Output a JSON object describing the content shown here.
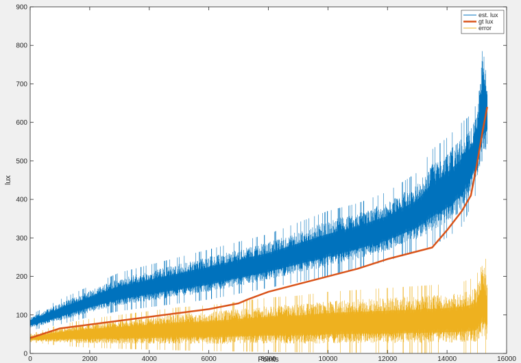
{
  "chart_data": {
    "type": "line",
    "title": "",
    "xlabel": "Points",
    "ylabel": "lux",
    "xlim": [
      0,
      16000
    ],
    "ylim": [
      0,
      900
    ],
    "xticks": [
      0,
      2000,
      4000,
      6000,
      8000,
      10000,
      12000,
      14000,
      16000
    ],
    "yticks": [
      0,
      100,
      200,
      300,
      400,
      500,
      600,
      700,
      800,
      900
    ],
    "grid": false,
    "legend_position": "top-right",
    "series": [
      {
        "name": "est. lux",
        "color": "#0072BD",
        "style": "noisy band",
        "x": [
          0,
          1000,
          2000,
          3000,
          4000,
          5000,
          6000,
          7000,
          8000,
          9000,
          10000,
          11000,
          12000,
          13000,
          13500,
          14000,
          14500,
          14800,
          15000,
          15200,
          15350
        ],
        "center": [
          75,
          105,
          130,
          145,
          160,
          175,
          190,
          210,
          230,
          250,
          270,
          295,
          325,
          365,
          390,
          420,
          470,
          520,
          570,
          660,
          620
        ],
        "upper": [
          100,
          140,
          175,
          210,
          230,
          250,
          270,
          290,
          310,
          340,
          370,
          390,
          420,
          470,
          530,
          560,
          600,
          620,
          650,
          870,
          760
        ],
        "lower": [
          60,
          75,
          95,
          110,
          120,
          130,
          140,
          155,
          170,
          185,
          200,
          220,
          240,
          265,
          280,
          300,
          330,
          380,
          420,
          440,
          500
        ]
      },
      {
        "name": "gt lux",
        "color": "#D95319",
        "style": "line",
        "x": [
          0,
          1000,
          2000,
          3000,
          4000,
          5000,
          6000,
          7000,
          7300,
          8000,
          9000,
          10000,
          11000,
          12000,
          13000,
          13500,
          14000,
          14500,
          14800,
          15000,
          15200,
          15350
        ],
        "y": [
          40,
          65,
          75,
          85,
          95,
          105,
          115,
          130,
          140,
          160,
          180,
          200,
          220,
          245,
          265,
          275,
          320,
          370,
          410,
          490,
          580,
          640
        ]
      },
      {
        "name": "error",
        "color": "#EDB120",
        "style": "noisy band",
        "x": [
          0,
          1000,
          2000,
          3000,
          4000,
          5000,
          6000,
          7000,
          8000,
          9000,
          10000,
          11000,
          12000,
          13000,
          14000,
          14500,
          15000,
          15200,
          15350
        ],
        "upper": [
          50,
          75,
          90,
          100,
          110,
          120,
          125,
          135,
          145,
          150,
          160,
          165,
          170,
          175,
          180,
          185,
          200,
          290,
          220
        ],
        "lower": [
          30,
          20,
          15,
          12,
          10,
          8,
          6,
          5,
          4,
          3,
          2,
          2,
          1,
          1,
          1,
          1,
          1,
          1,
          1
        ]
      }
    ]
  }
}
